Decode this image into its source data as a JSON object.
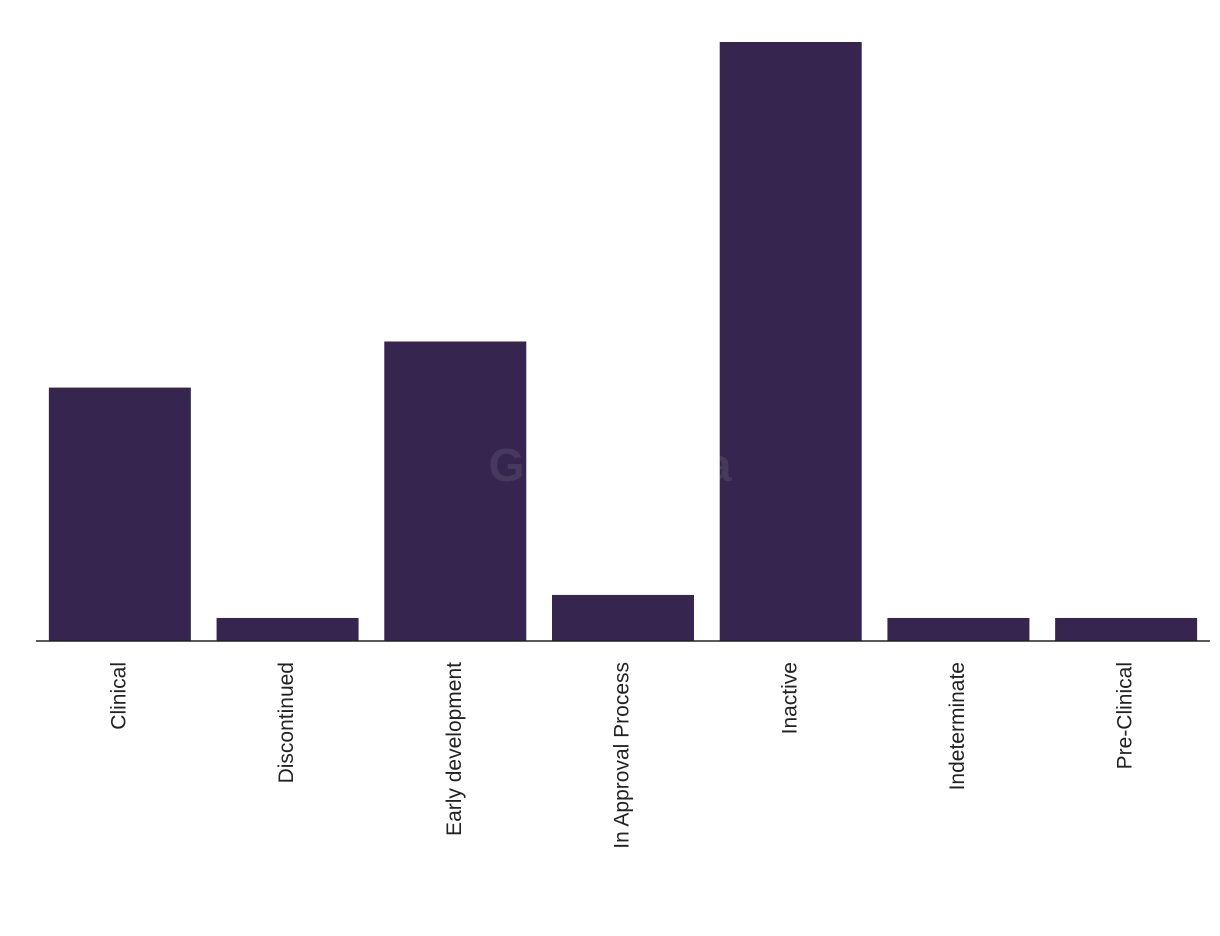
{
  "chart_data": {
    "type": "bar",
    "watermark": "GlobalData",
    "categories": [
      "Clinical",
      "Discontinued",
      "Early development",
      "In Approval Process",
      "Inactive",
      "Indeterminate",
      "Pre-Clinical"
    ],
    "values": [
      11,
      1,
      13,
      2,
      26,
      1,
      1
    ],
    "color": "#35254f"
  }
}
